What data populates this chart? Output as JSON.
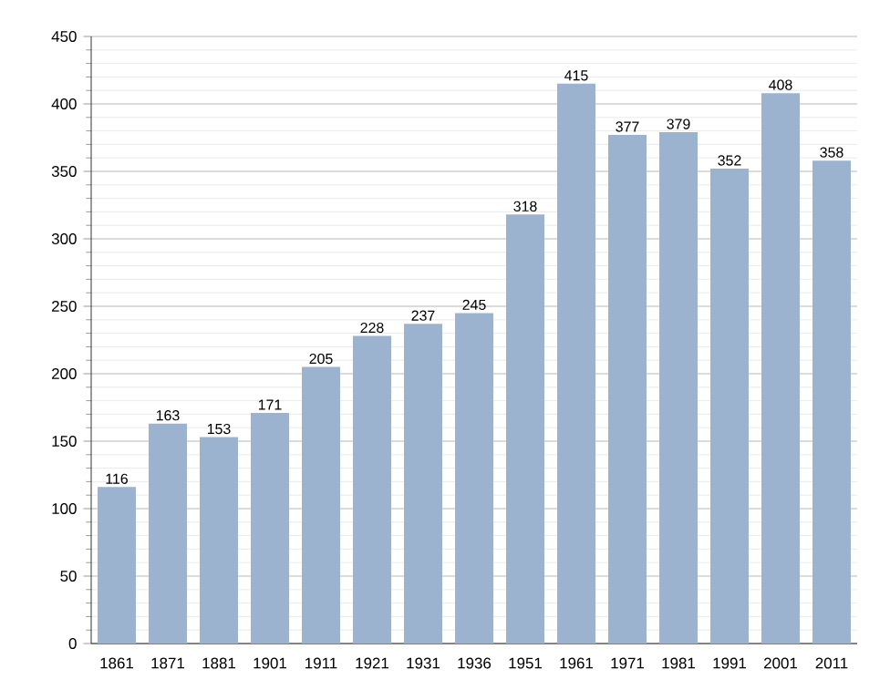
{
  "chart_data": {
    "type": "bar",
    "categories": [
      "1861",
      "1871",
      "1881",
      "1901",
      "1911",
      "1921",
      "1931",
      "1936",
      "1951",
      "1961",
      "1971",
      "1981",
      "1991",
      "2001",
      "2011"
    ],
    "values": [
      116,
      163,
      153,
      171,
      205,
      228,
      237,
      245,
      318,
      415,
      377,
      379,
      352,
      408,
      358
    ],
    "color": "#9bb3cf",
    "ylim": [
      0,
      450
    ],
    "yticks": [
      0,
      50,
      100,
      150,
      200,
      250,
      300,
      350,
      400,
      450
    ],
    "grid": "y",
    "data_labels": true
  }
}
